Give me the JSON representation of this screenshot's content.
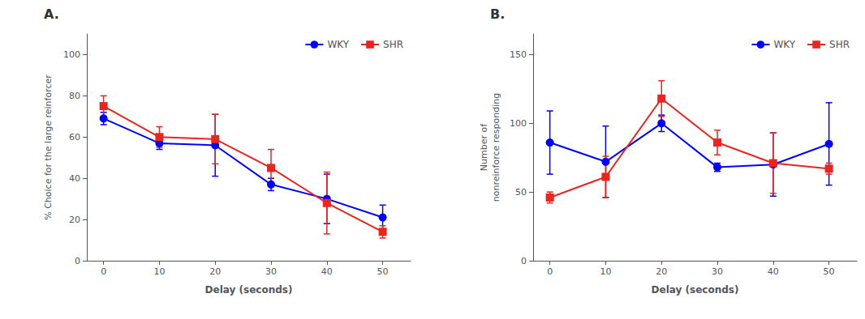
{
  "chart_data": [
    {
      "type": "line",
      "title": "A.",
      "xlabel": "Delay (seconds)",
      "ylabel": "% Choice for the large reinforcer",
      "x": [
        0,
        10,
        20,
        30,
        40,
        50
      ],
      "xlim": [
        -3,
        55
      ],
      "xticks": [
        0,
        10,
        20,
        30,
        40,
        50
      ],
      "ylim": [
        0,
        110
      ],
      "yticks": [
        0,
        20,
        40,
        60,
        80,
        100
      ],
      "grid": false,
      "legend": "upper right",
      "series": [
        {
          "name": "WKY",
          "color": "#0000ff",
          "marker": "circle",
          "values": [
            69,
            57,
            56,
            37,
            30,
            21
          ],
          "errors": [
            3,
            3,
            15,
            3,
            12,
            6
          ]
        },
        {
          "name": "SHR",
          "color": "#e8251f",
          "marker": "square",
          "values": [
            75,
            60,
            59,
            45,
            28,
            14
          ],
          "errors": [
            5,
            5,
            12,
            9,
            15,
            3
          ]
        }
      ]
    },
    {
      "type": "line",
      "title": "B.",
      "xlabel": "Delay (seconds)",
      "ylabel": "Number of\nnonreinforce responding",
      "x": [
        0,
        10,
        20,
        30,
        40,
        50
      ],
      "xlim": [
        -3,
        55
      ],
      "xticks": [
        0,
        10,
        20,
        30,
        40,
        50
      ],
      "ylim": [
        0,
        165
      ],
      "yticks": [
        0,
        50,
        100,
        150
      ],
      "grid": false,
      "legend": "upper right",
      "series": [
        {
          "name": "WKY",
          "color": "#0000ff",
          "marker": "circle",
          "values": [
            86,
            72,
            100,
            68,
            70,
            85
          ],
          "errors": [
            23,
            26,
            6,
            3,
            23,
            30
          ]
        },
        {
          "name": "SHR",
          "color": "#e8251f",
          "marker": "square",
          "values": [
            46,
            61,
            118,
            86,
            71,
            67
          ],
          "errors": [
            4,
            15,
            13,
            9,
            22,
            4
          ]
        }
      ]
    }
  ]
}
